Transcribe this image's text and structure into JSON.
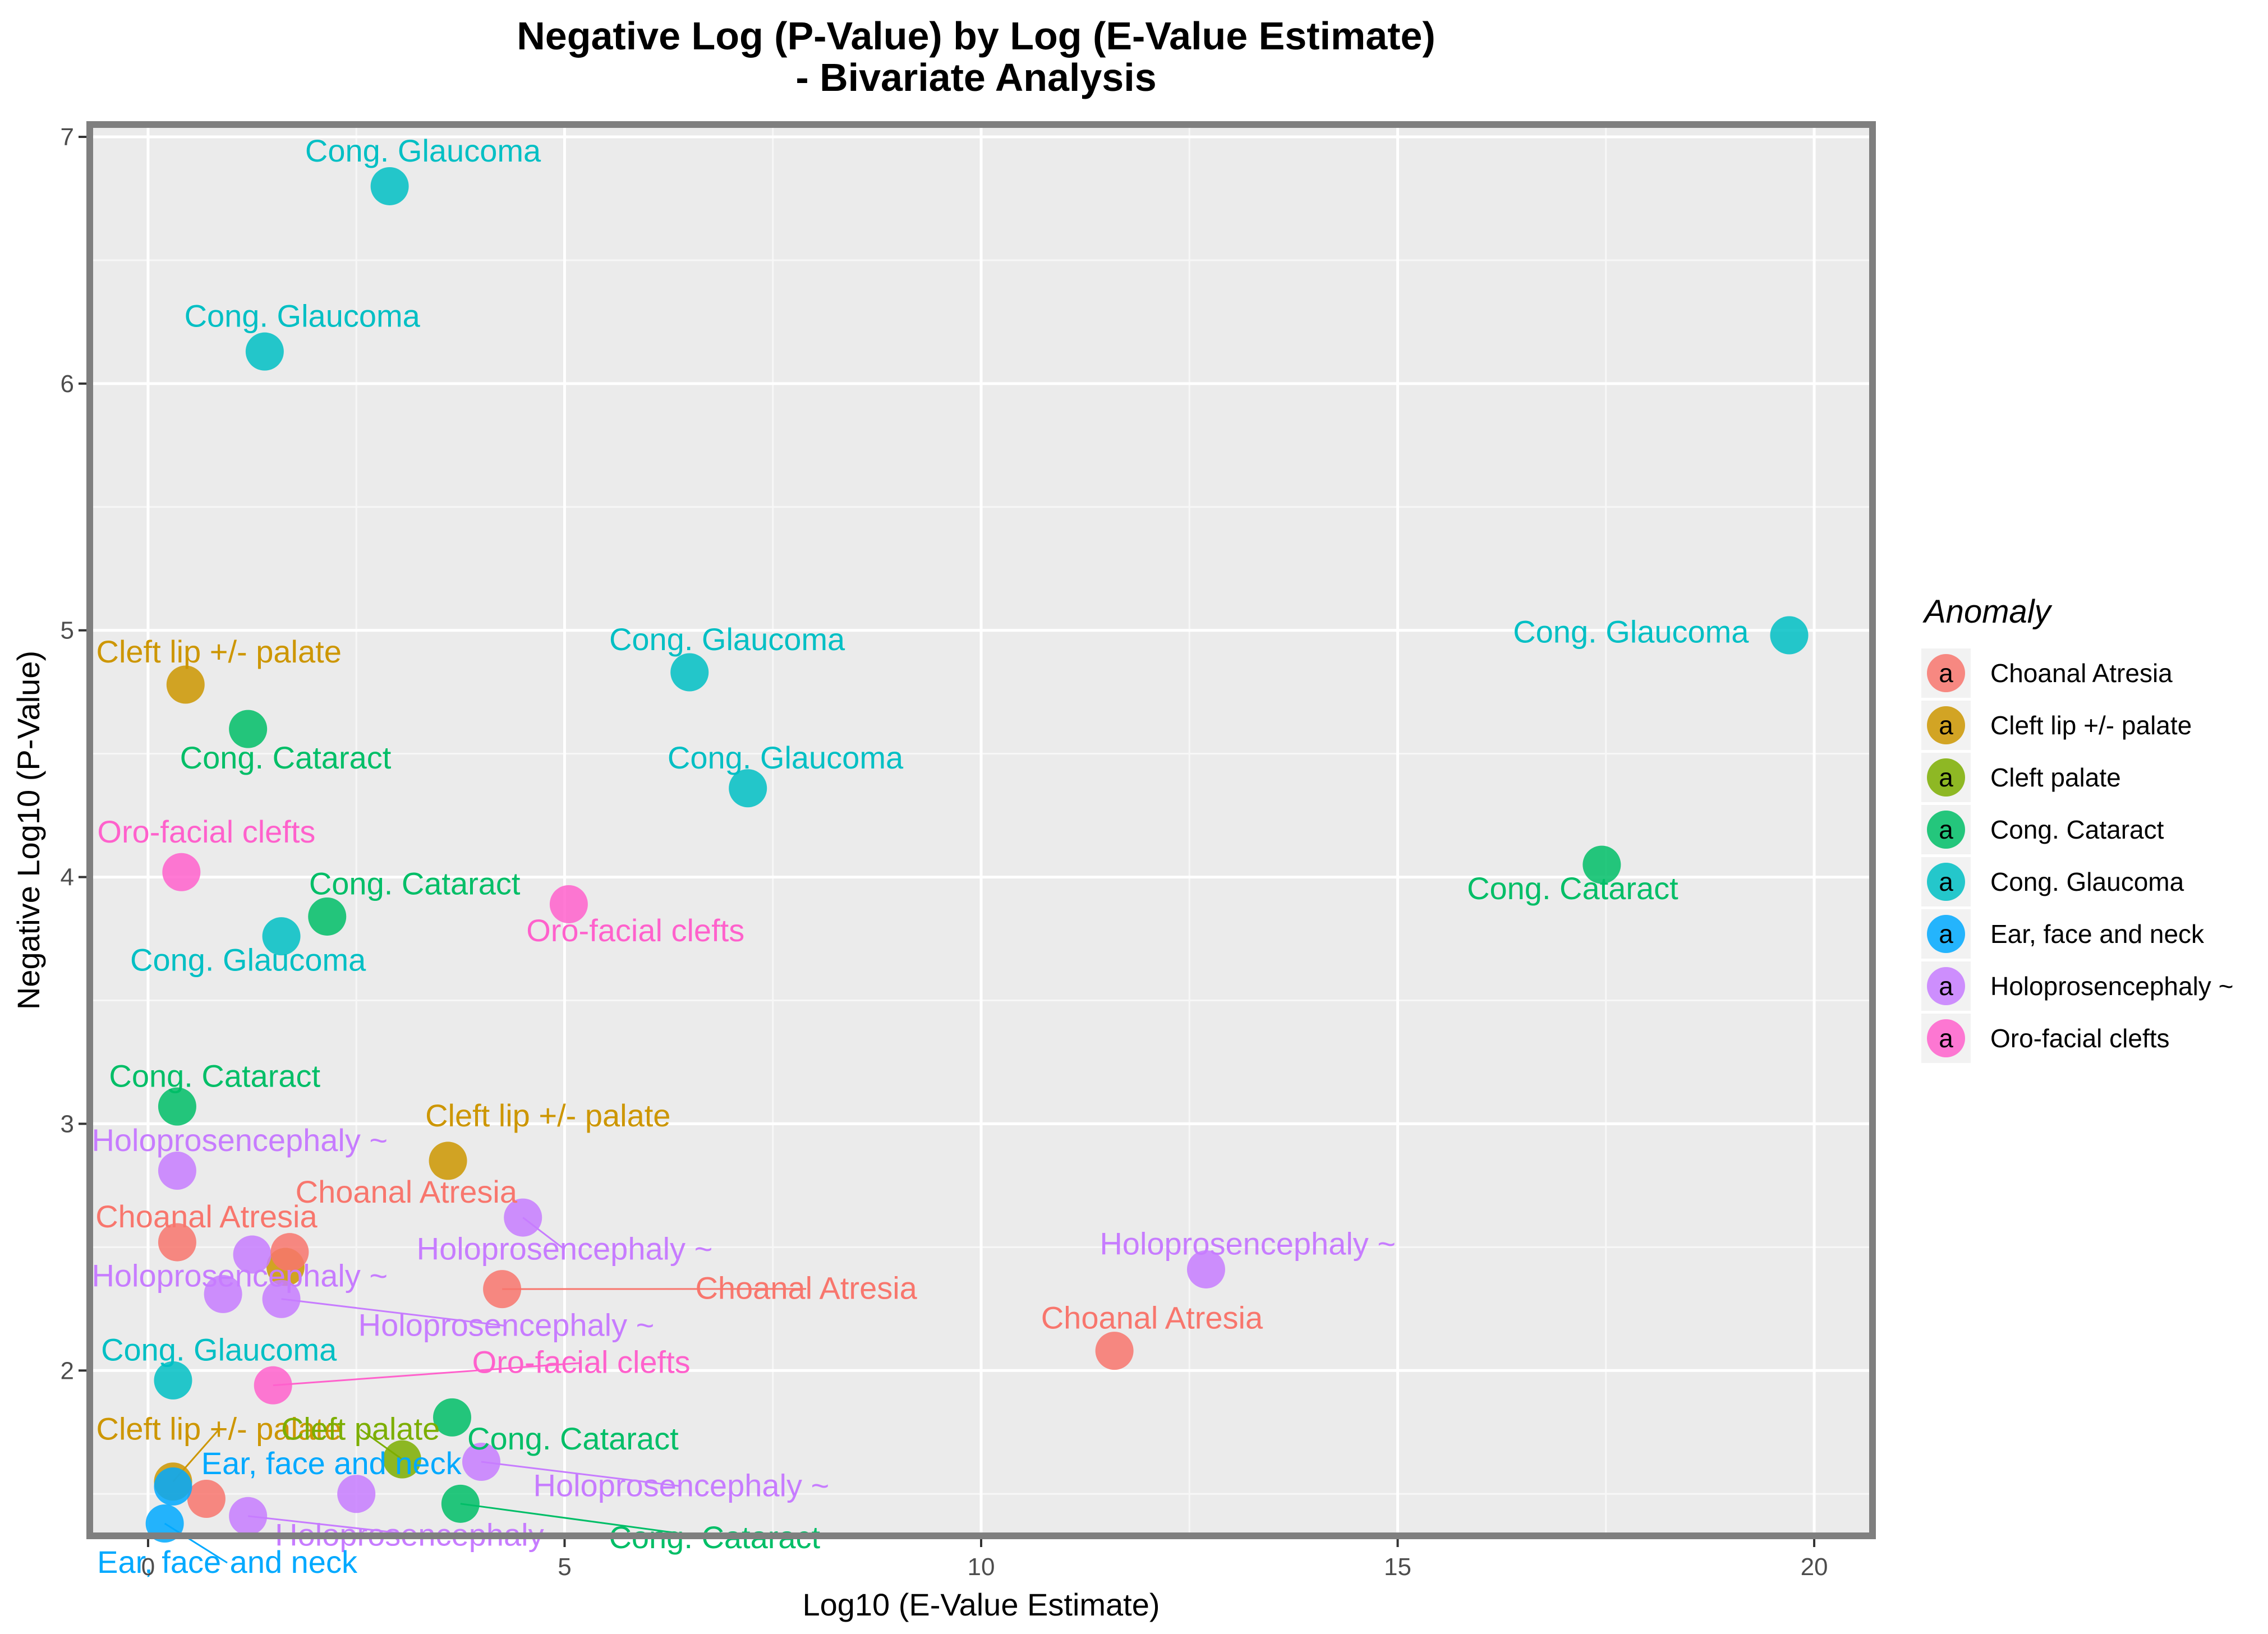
{
  "chart_data": {
    "type": "scatter",
    "title": [
      "Negative Log (P-Value) by Log (E-Value Estimate)",
      "- Bivariate Analysis"
    ],
    "xlabel": "Log10 (E-Value Estimate)",
    "ylabel": "Negative Log10 (P-Value)",
    "xlim": [
      -0.7,
      20.7
    ],
    "ylim": [
      1.33,
      7.05
    ],
    "x_ticks": [
      0,
      5,
      10,
      15,
      20
    ],
    "y_ticks": [
      2,
      3,
      4,
      5,
      6,
      7
    ],
    "grid": true,
    "legend": {
      "title": "Anomaly",
      "position": "right",
      "key_glyph": "a",
      "entries": [
        {
          "name": "Choanal Atresia",
          "color": "#F8766D"
        },
        {
          "name": "Cleft lip +/- palate",
          "color": "#CD9600"
        },
        {
          "name": "Cleft palate",
          "color": "#7CAE00"
        },
        {
          "name": "Cong. Cataract",
          "color": "#00BE67"
        },
        {
          "name": "Cong. Glaucoma",
          "color": "#00BFC4"
        },
        {
          "name": "Ear, face and neck",
          "color": "#00A9FF"
        },
        {
          "name": "Holoprosencephaly ~",
          "color": "#C77CFF"
        },
        {
          "name": "Oro-facial clefts",
          "color": "#FF61CC"
        }
      ]
    },
    "points": [
      {
        "series": "Cong. Glaucoma",
        "x": 2.9,
        "y": 6.8,
        "label": "Cong. Glaucoma",
        "lx": 3.3,
        "ly": 6.9
      },
      {
        "series": "Cong. Glaucoma",
        "x": 1.4,
        "y": 6.13,
        "label": "Cong. Glaucoma",
        "lx": 1.85,
        "ly": 6.23
      },
      {
        "series": "Cong. Glaucoma",
        "x": 19.7,
        "y": 4.98,
        "label": "Cong. Glaucoma",
        "lx": 17.8,
        "ly": 4.95
      },
      {
        "series": "Cong. Glaucoma",
        "x": 6.5,
        "y": 4.83,
        "label": "Cong. Glaucoma",
        "lx": 6.95,
        "ly": 4.92
      },
      {
        "series": "Cong. Glaucoma",
        "x": 7.2,
        "y": 4.36,
        "label": "Cong. Glaucoma",
        "lx": 7.65,
        "ly": 4.44
      },
      {
        "series": "Cong. Glaucoma",
        "x": 1.6,
        "y": 3.76,
        "label": "Cong. Glaucoma",
        "lx": 1.2,
        "ly": 3.62
      },
      {
        "series": "Cong. Glaucoma",
        "x": 0.3,
        "y": 1.96,
        "label": "Cong. Glaucoma",
        "lx": 0.85,
        "ly": 2.04
      },
      {
        "series": "Cleft lip +/- palate",
        "x": 0.45,
        "y": 4.78,
        "label": "Cleft lip +/- palate",
        "lx": 0.85,
        "ly": 4.87
      },
      {
        "series": "Cleft lip +/- palate",
        "x": 3.6,
        "y": 2.85,
        "label": "Cleft lip +/- palate",
        "lx": 4.8,
        "ly": 2.99
      },
      {
        "series": "Cleft lip +/- palate",
        "x": 1.65,
        "y": 2.42
      },
      {
        "series": "Cleft lip +/- palate",
        "x": 0.3,
        "y": 1.55,
        "label": "Cleft lip +/- palate",
        "lx": 0.85,
        "ly": 1.72,
        "line": true
      },
      {
        "series": "Cong. Cataract",
        "x": 1.2,
        "y": 4.6,
        "label": "Cong. Cataract",
        "lx": 1.65,
        "ly": 4.44
      },
      {
        "series": "Cong. Cataract",
        "x": 17.45,
        "y": 4.05,
        "label": "Cong. Cataract",
        "lx": 17.1,
        "ly": 3.91
      },
      {
        "series": "Cong. Cataract",
        "x": 2.15,
        "y": 3.84,
        "label": "Cong. Cataract",
        "lx": 3.2,
        "ly": 3.93
      },
      {
        "series": "Cong. Cataract",
        "x": 0.35,
        "y": 3.07,
        "label": "Cong. Cataract",
        "lx": 0.8,
        "ly": 3.15
      },
      {
        "series": "Cong. Cataract",
        "x": 3.65,
        "y": 1.81,
        "label": "Cong. Cataract",
        "lx": 5.1,
        "ly": 1.68
      },
      {
        "series": "Cong. Cataract",
        "x": 3.75,
        "y": 1.46,
        "label": "Cong. Cataract",
        "lx": 6.8,
        "ly": 1.28,
        "line": true
      },
      {
        "series": "Oro-facial clefts",
        "x": 0.4,
        "y": 4.02,
        "label": "Oro-facial clefts",
        "lx": 0.7,
        "ly": 4.14
      },
      {
        "series": "Oro-facial clefts",
        "x": 5.05,
        "y": 3.89,
        "label": "Oro-facial clefts",
        "lx": 5.85,
        "ly": 3.74
      },
      {
        "series": "Oro-facial clefts",
        "x": 1.5,
        "y": 1.94,
        "label": "Oro-facial clefts",
        "lx": 5.2,
        "ly": 1.99,
        "line": true
      },
      {
        "series": "Holoprosencephaly ~",
        "x": 0.35,
        "y": 2.81,
        "label": "Holoprosencephaly ~",
        "lx": 1.1,
        "ly": 2.89
      },
      {
        "series": "Holoprosencephaly ~",
        "x": 4.5,
        "y": 2.62,
        "label": "Holoprosencephaly ~",
        "lx": 5.0,
        "ly": 2.45,
        "line": true
      },
      {
        "series": "Holoprosencephaly ~",
        "x": 12.7,
        "y": 2.41,
        "label": "Holoprosencephaly ~",
        "lx": 13.2,
        "ly": 2.47
      },
      {
        "series": "Holoprosencephaly ~",
        "x": 1.25,
        "y": 2.47
      },
      {
        "series": "Holoprosencephaly ~",
        "x": 0.9,
        "y": 2.31,
        "label": "Holoprosencephaly ~",
        "lx": 1.1,
        "ly": 2.34
      },
      {
        "series": "Holoprosencephaly ~",
        "x": 1.6,
        "y": 2.29,
        "label": "Holoprosencephaly ~",
        "lx": 4.3,
        "ly": 2.14,
        "line": true
      },
      {
        "series": "Holoprosencephaly ~",
        "x": 4.0,
        "y": 1.63,
        "label": "Holoprosencephaly ~",
        "lx": 6.4,
        "ly": 1.49,
        "line": true
      },
      {
        "series": "Holoprosencephaly ~",
        "x": 2.5,
        "y": 1.5
      },
      {
        "series": "Holoprosencephaly ~",
        "x": 1.2,
        "y": 1.41,
        "label": "Holoprosencephaly ~",
        "lx": 3.3,
        "ly": 1.29,
        "line": true
      },
      {
        "series": "Choanal Atresia",
        "x": 0.35,
        "y": 2.52,
        "label": "Choanal Atresia",
        "lx": 0.7,
        "ly": 2.58
      },
      {
        "series": "Choanal Atresia",
        "x": 1.7,
        "y": 2.48,
        "label": "Choanal Atresia",
        "lx": 3.1,
        "ly": 2.68
      },
      {
        "series": "Choanal Atresia",
        "x": 4.25,
        "y": 2.33,
        "label": "Choanal Atresia",
        "lx": 7.9,
        "ly": 2.29,
        "line": true
      },
      {
        "series": "Choanal Atresia",
        "x": 11.6,
        "y": 2.08,
        "label": "Choanal Atresia",
        "lx": 12.05,
        "ly": 2.17
      },
      {
        "series": "Choanal Atresia",
        "x": 0.7,
        "y": 1.48
      },
      {
        "series": "Cleft palate",
        "x": 3.05,
        "y": 1.64,
        "label": "Cleft palate",
        "lx": 2.55,
        "ly": 1.72,
        "line": true
      },
      {
        "series": "Ear, face and neck",
        "x": 0.3,
        "y": 1.53,
        "label": "Ear, face and neck",
        "lx": 2.2,
        "ly": 1.58
      },
      {
        "series": "Ear, face and neck",
        "x": 0.2,
        "y": 1.38,
        "label": "Ear, face and neck",
        "lx": 0.95,
        "ly": 1.18,
        "line": true
      }
    ]
  }
}
